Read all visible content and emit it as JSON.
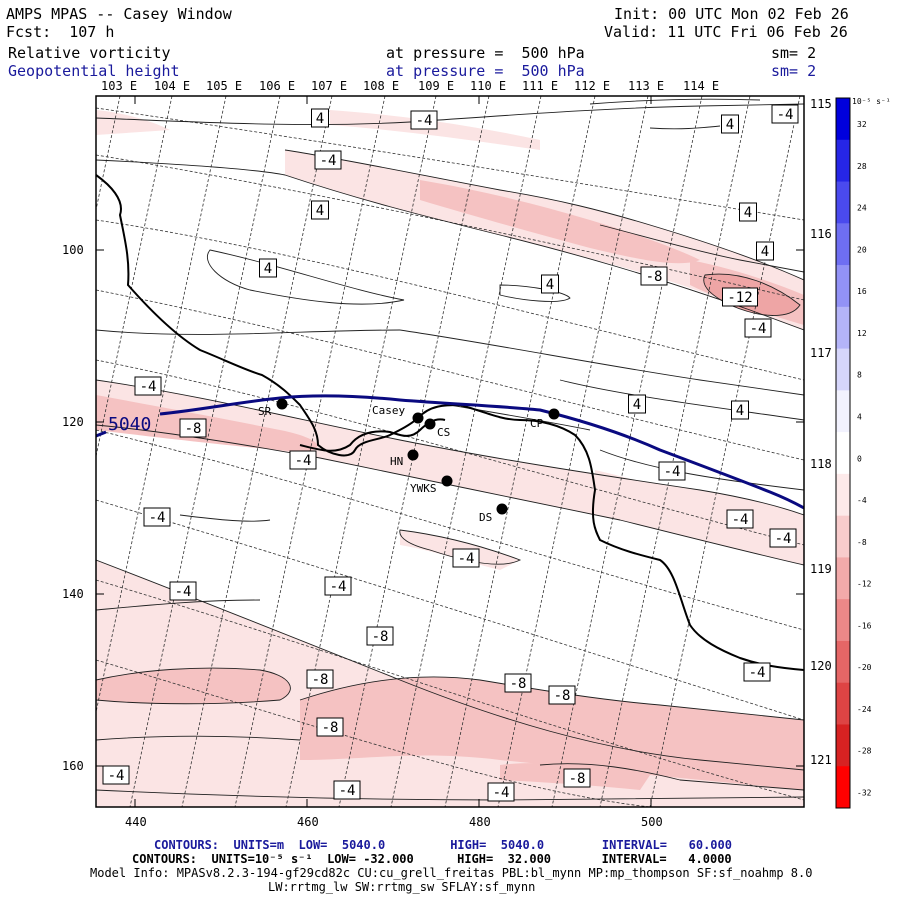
{
  "header": {
    "title": "AMPS MPAS -- Casey Window",
    "forecast": "Fcst:  107 h",
    "init": "Init: 00 UTC Mon 02 Feb 26",
    "valid": "Valid: 11 UTC Fri 06 Feb 26",
    "field1_name": "Relative vorticity",
    "field1_level": "at pressure =  500 hPa",
    "field1_sm": "sm= 2",
    "field2_name": "Geopotential height",
    "field2_level": "at pressure =  500 hPa",
    "field2_sm": "sm= 2"
  },
  "lon_labels_top": [
    "103 E",
    "104 E",
    "105 E",
    "106 E",
    "107 E",
    "108 E",
    "109 E",
    "110 E",
    "111 E",
    "112 E",
    "113 E",
    "114 E"
  ],
  "lon_labels_right": [
    "115 E",
    "116 E",
    "117 E",
    "118 E",
    "119 E",
    "120 E",
    "121 E"
  ],
  "y_ticks": [
    "100",
    "120",
    "140",
    "160"
  ],
  "x_ticks": [
    "440",
    "460",
    "480",
    "500"
  ],
  "colorbar": {
    "unit": "10⁻⁵ s⁻¹",
    "labels": [
      "32",
      "28",
      "24",
      "20",
      "16",
      "12",
      "8",
      "4",
      "0",
      "-4",
      "-8",
      "-12",
      "-16",
      "-20",
      "-24",
      "-28",
      "-32"
    ],
    "colors": [
      "#0000dd",
      "#2626e6",
      "#4a4aee",
      "#6e6ef2",
      "#9292f6",
      "#b4b4f8",
      "#d6d6fb",
      "#f2f2fe",
      "#ffffff",
      "#fdeaea",
      "#f8cccc",
      "#f2aaaa",
      "#ec8888",
      "#e56666",
      "#de4444",
      "#d72222",
      "#ff0000"
    ]
  },
  "stations": [
    {
      "id": "SR",
      "label": "SR"
    },
    {
      "id": "Casey",
      "label": "Casey"
    },
    {
      "id": "CS",
      "label": "CS"
    },
    {
      "id": "CP",
      "label": "CP"
    },
    {
      "id": "HN",
      "label": "HN"
    },
    {
      "id": "YWKS",
      "label": "YWKS"
    },
    {
      "id": "DS",
      "label": "DS"
    }
  ],
  "height_contour_label": "5040",
  "vorticity_labels": [
    "4",
    "-4",
    "-8",
    "-12"
  ],
  "footer": {
    "line1": "CONTOURS:  UNITS=m  LOW=  5040.0         HIGH=  5040.0        INTERVAL=   60.000",
    "line2": "CONTOURS:  UNITS=10⁻⁵ s⁻¹  LOW= -32.000      HIGH=  32.000       INTERVAL=   4.0000",
    "line3": "Model Info: MPASv8.2.3-194-gf29cd82c CU:cu_grell_freitas PBL:bl_mynn MP:mp_thompson SF:sf_noahmp 8.0",
    "line4": "LW:rrtmg_lw SW:rrtmg_sw SFLAY:sf_mynn"
  }
}
